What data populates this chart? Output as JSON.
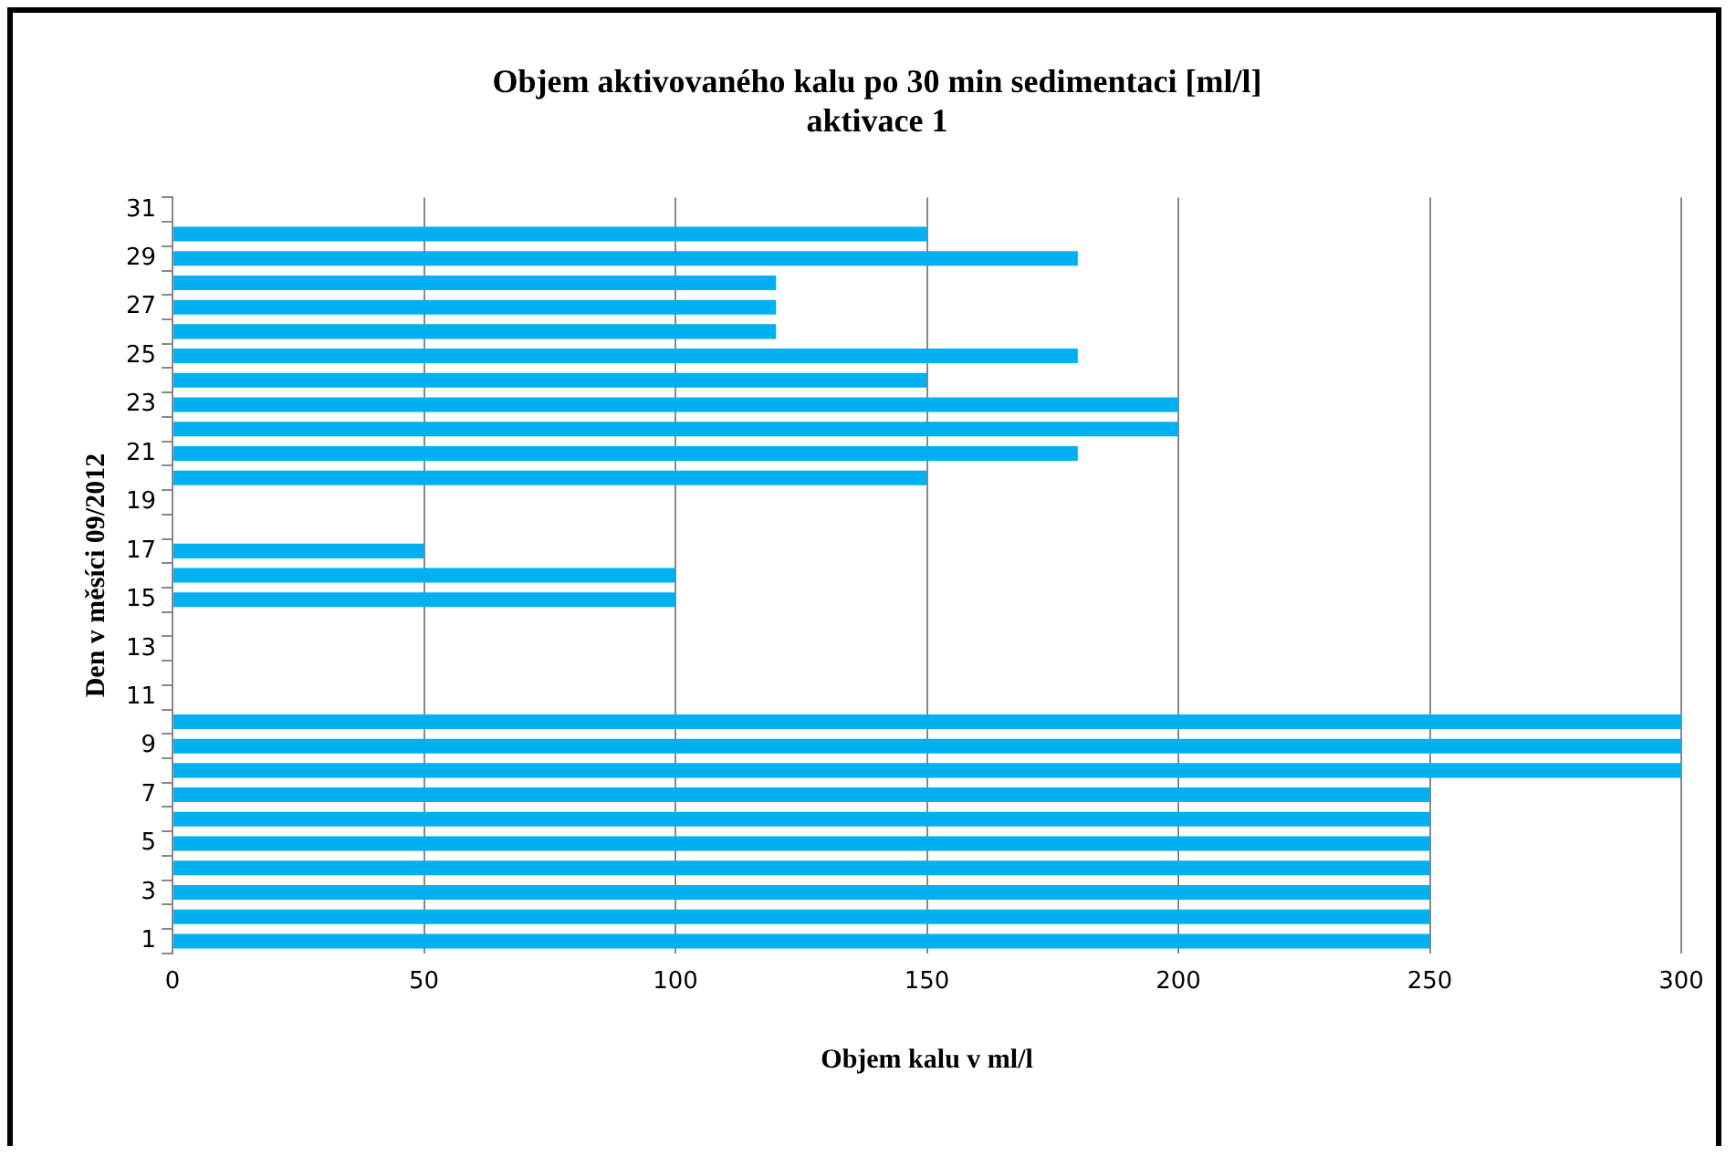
{
  "chart_data": {
    "type": "bar",
    "orientation": "horizontal",
    "title": "Objem aktivovaného kalu po 30 min sedimentaci [ml/l]",
    "subtitle": "aktivace 1",
    "xlabel": "Objem kalu v ml/l",
    "ylabel": "Den v měsíci 09/2012",
    "categories": [
      "31",
      null,
      "29",
      null,
      "27",
      null,
      "25",
      null,
      "23",
      null,
      "21",
      null,
      "19",
      null,
      "17",
      null,
      "15",
      null,
      "13",
      null,
      "11",
      null,
      "9",
      null,
      "7",
      null,
      "5",
      null,
      "3",
      null,
      "1"
    ],
    "values": [
      null,
      150,
      180,
      120,
      120,
      120,
      180,
      150,
      200,
      200,
      180,
      150,
      null,
      null,
      50,
      100,
      100,
      null,
      null,
      null,
      null,
      300,
      300,
      300,
      250,
      250,
      250,
      250,
      250,
      250,
      250
    ],
    "color": "#00b0f0",
    "xlim": [
      0,
      300
    ],
    "xticks": [
      0,
      50,
      100,
      150,
      200,
      250,
      300
    ],
    "grid": "x",
    "legend": false
  }
}
